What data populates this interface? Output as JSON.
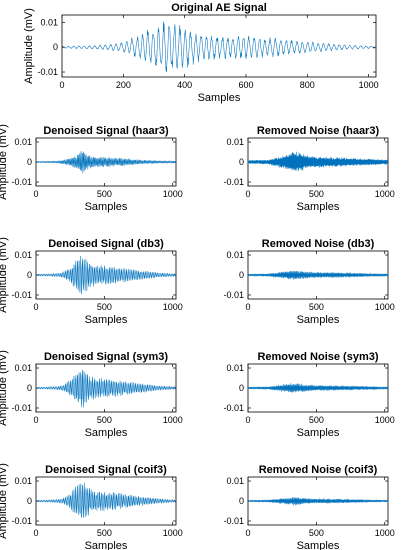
{
  "chart_data": [
    {
      "id": "original",
      "type": "line",
      "title": "Original AE Signal",
      "xlabel": "Samples",
      "ylabel": "Amplitude (mV)",
      "xlim": [
        0,
        1024
      ],
      "ylim": [
        -0.012,
        0.013
      ],
      "xticks": [
        0,
        200,
        400,
        600,
        800,
        1000
      ],
      "xtick_labels": [
        "0",
        "200",
        "400",
        "600",
        "800",
        "1000"
      ],
      "yticks": [
        -0.01,
        0,
        0.01
      ],
      "ytick_labels": [
        "-0.01",
        "0",
        "0.01"
      ],
      "series": [
        {
          "color": "#0072BD",
          "x": [
            0,
            100,
            150,
            200,
            250,
            300,
            350,
            380,
            420,
            460,
            500,
            550,
            600,
            650,
            700,
            750,
            800,
            850,
            900,
            950,
            1024
          ],
          "envelope": [
            0.0004,
            0.0007,
            0.0012,
            0.002,
            0.005,
            0.0085,
            0.0115,
            0.0105,
            0.0075,
            0.0055,
            0.005,
            0.0045,
            0.0048,
            0.0042,
            0.0038,
            0.003,
            0.0025,
            0.0018,
            0.0012,
            0.0008,
            0.0004
          ],
          "cycles_per_sample": 0.058
        }
      ]
    },
    {
      "id": "den_haar3",
      "type": "line",
      "title": "Denoised Signal (haar3)",
      "xlabel": "Samples",
      "ylabel": "Amplitude (mV)",
      "xlim": [
        0,
        1024
      ],
      "ylim": [
        -0.012,
        0.012
      ],
      "xticks": [
        0,
        500,
        1000
      ],
      "xtick_labels": [
        "0",
        "500",
        "1000"
      ],
      "yticks": [
        -0.01,
        0,
        0.01
      ],
      "ytick_labels": [
        "-0.01",
        "0",
        "0.01"
      ],
      "series": [
        {
          "color": "#0072BD",
          "x": [
            0,
            150,
            200,
            250,
            300,
            340,
            360,
            400,
            450,
            500,
            550,
            600,
            650,
            700,
            800,
            1024
          ],
          "envelope": [
            0.0003,
            0.0005,
            0.001,
            0.002,
            0.0035,
            0.0065,
            0.0045,
            0.003,
            0.0025,
            0.0025,
            0.0022,
            0.002,
            0.0018,
            0.0014,
            0.0009,
            0.0005
          ],
          "cycles_per_sample": 0.11
        }
      ]
    },
    {
      "id": "noise_haar3",
      "type": "line",
      "title": "Removed Noise (haar3)",
      "xlabel": "Samples",
      "ylabel": "",
      "xlim": [
        0,
        1024
      ],
      "ylim": [
        -0.012,
        0.012
      ],
      "xticks": [
        0,
        500,
        1000
      ],
      "xtick_labels": [
        "0",
        "500",
        "1000"
      ],
      "yticks": [
        -0.01,
        0,
        0.01
      ],
      "ytick_labels": [
        "-0.01",
        "0",
        "0.01"
      ],
      "series": [
        {
          "color": "#0072BD",
          "x": [
            0,
            150,
            200,
            250,
            300,
            350,
            400,
            450,
            500,
            550,
            600,
            700,
            800,
            900,
            1024
          ],
          "envelope": [
            0.0008,
            0.0012,
            0.0022,
            0.003,
            0.0045,
            0.0055,
            0.004,
            0.0032,
            0.0028,
            0.0026,
            0.0024,
            0.0022,
            0.0018,
            0.0016,
            0.0012
          ],
          "cycles_per_sample": 0.2
        }
      ]
    },
    {
      "id": "den_db3",
      "type": "line",
      "title": "Denoised Signal (db3)",
      "xlabel": "Samples",
      "ylabel": "Amplitude (mV)",
      "xlim": [
        0,
        1024
      ],
      "ylim": [
        -0.012,
        0.012
      ],
      "xticks": [
        0,
        500,
        1000
      ],
      "xtick_labels": [
        "0",
        "500",
        "1000"
      ],
      "yticks": [
        -0.01,
        0,
        0.01
      ],
      "ytick_labels": [
        "-0.01",
        "0",
        "0.01"
      ],
      "series": [
        {
          "color": "#0072BD",
          "x": [
            0,
            150,
            200,
            250,
            300,
            340,
            360,
            400,
            450,
            500,
            550,
            600,
            650,
            700,
            800,
            900,
            1024
          ],
          "envelope": [
            0.0004,
            0.0008,
            0.0015,
            0.004,
            0.008,
            0.0105,
            0.0085,
            0.006,
            0.005,
            0.0048,
            0.0045,
            0.004,
            0.0035,
            0.003,
            0.002,
            0.0012,
            0.0006
          ],
          "cycles_per_sample": 0.08
        }
      ]
    },
    {
      "id": "noise_db3",
      "type": "line",
      "title": "Removed Noise (db3)",
      "xlabel": "Samples",
      "ylabel": "",
      "xlim": [
        0,
        1024
      ],
      "ylim": [
        -0.012,
        0.012
      ],
      "xticks": [
        0,
        500,
        1000
      ],
      "xtick_labels": [
        "0",
        "500",
        "1000"
      ],
      "yticks": [
        -0.01,
        0,
        0.01
      ],
      "ytick_labels": [
        "-0.01",
        "0",
        "0.01"
      ],
      "series": [
        {
          "color": "#0072BD",
          "x": [
            0,
            150,
            200,
            250,
            300,
            350,
            400,
            450,
            500,
            600,
            700,
            800,
            900,
            1024
          ],
          "envelope": [
            0.0005,
            0.0007,
            0.0012,
            0.0017,
            0.0022,
            0.0024,
            0.0019,
            0.0016,
            0.0014,
            0.0013,
            0.0012,
            0.001,
            0.0008,
            0.0006
          ],
          "cycles_per_sample": 0.15
        }
      ]
    },
    {
      "id": "den_sym3",
      "type": "line",
      "title": "Denoised Signal (sym3)",
      "xlabel": "Samples",
      "ylabel": "Amplitude (mV)",
      "xlim": [
        0,
        1024
      ],
      "ylim": [
        -0.012,
        0.012
      ],
      "xticks": [
        0,
        500,
        1000
      ],
      "xtick_labels": [
        "0",
        "500",
        "1000"
      ],
      "yticks": [
        -0.01,
        0,
        0.01
      ],
      "ytick_labels": [
        "-0.01",
        "0",
        "0.01"
      ],
      "series": [
        {
          "color": "#0072BD",
          "x": [
            0,
            150,
            200,
            250,
            300,
            340,
            360,
            400,
            450,
            500,
            550,
            600,
            650,
            700,
            800,
            900,
            1024
          ],
          "envelope": [
            0.0004,
            0.0008,
            0.0015,
            0.004,
            0.008,
            0.0108,
            0.0085,
            0.006,
            0.005,
            0.0048,
            0.0045,
            0.004,
            0.0035,
            0.003,
            0.002,
            0.0012,
            0.0006
          ],
          "cycles_per_sample": 0.08
        }
      ]
    },
    {
      "id": "noise_sym3",
      "type": "line",
      "title": "Removed Noise (sym3)",
      "xlabel": "Samples",
      "ylabel": "",
      "xlim": [
        0,
        1024
      ],
      "ylim": [
        -0.012,
        0.012
      ],
      "xticks": [
        0,
        500,
        1000
      ],
      "xtick_labels": [
        "0",
        "500",
        "1000"
      ],
      "yticks": [
        -0.01,
        0,
        0.01
      ],
      "ytick_labels": [
        "-0.01",
        "0",
        "0.01"
      ],
      "series": [
        {
          "color": "#0072BD",
          "x": [
            0,
            150,
            200,
            250,
            300,
            350,
            400,
            450,
            500,
            600,
            700,
            800,
            900,
            1024
          ],
          "envelope": [
            0.0005,
            0.0007,
            0.0012,
            0.0017,
            0.0022,
            0.0024,
            0.0019,
            0.0016,
            0.0014,
            0.0013,
            0.0012,
            0.001,
            0.0008,
            0.0006
          ],
          "cycles_per_sample": 0.15
        }
      ]
    },
    {
      "id": "den_coif3",
      "type": "line",
      "title": "Denoised Signal (coif3)",
      "xlabel": "Samples",
      "ylabel": "Amplitude (mV)",
      "xlim": [
        0,
        1024
      ],
      "ylim": [
        -0.012,
        0.012
      ],
      "xticks": [
        0,
        500,
        1000
      ],
      "xtick_labels": [
        "0",
        "500",
        "1000"
      ],
      "yticks": [
        -0.01,
        0,
        0.01
      ],
      "ytick_labels": [
        "-0.01",
        "0",
        "0.01"
      ],
      "series": [
        {
          "color": "#0072BD",
          "x": [
            0,
            150,
            200,
            250,
            300,
            340,
            360,
            400,
            450,
            500,
            550,
            600,
            650,
            700,
            800,
            900,
            1024
          ],
          "envelope": [
            0.0004,
            0.0008,
            0.0015,
            0.004,
            0.008,
            0.011,
            0.0085,
            0.006,
            0.005,
            0.0048,
            0.0045,
            0.004,
            0.0035,
            0.003,
            0.002,
            0.0012,
            0.0006
          ],
          "cycles_per_sample": 0.08
        }
      ]
    },
    {
      "id": "noise_coif3",
      "type": "line",
      "title": "Removed Noise (coif3)",
      "xlabel": "Samples",
      "ylabel": "",
      "xlim": [
        0,
        1024
      ],
      "ylim": [
        -0.012,
        0.012
      ],
      "xticks": [
        0,
        500,
        1000
      ],
      "xtick_labels": [
        "0",
        "500",
        "1000"
      ],
      "yticks": [
        -0.01,
        0,
        0.01
      ],
      "ytick_labels": [
        "-0.01",
        "0",
        "0.01"
      ],
      "series": [
        {
          "color": "#0072BD",
          "x": [
            0,
            150,
            200,
            250,
            300,
            350,
            400,
            450,
            500,
            600,
            700,
            800,
            900,
            1024
          ],
          "envelope": [
            0.0004,
            0.0006,
            0.001,
            0.0014,
            0.0018,
            0.002,
            0.0016,
            0.0013,
            0.0012,
            0.0011,
            0.001,
            0.0008,
            0.0006,
            0.0005
          ],
          "cycles_per_sample": 0.15
        }
      ]
    }
  ]
}
